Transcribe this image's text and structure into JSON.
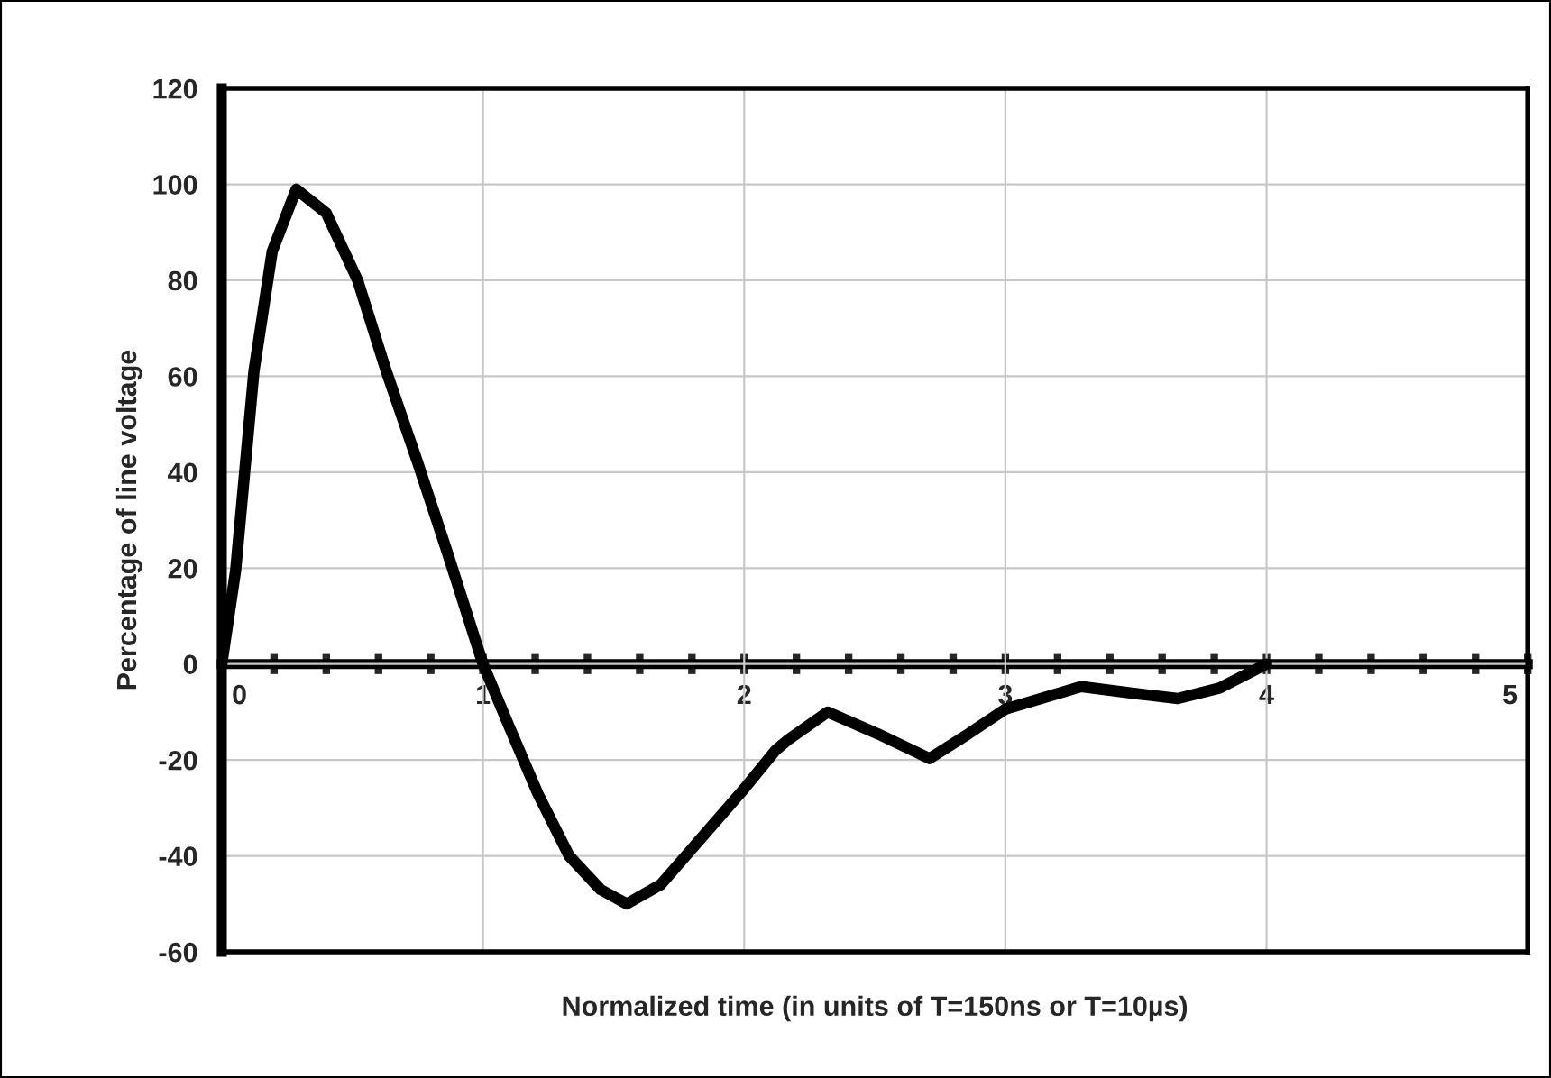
{
  "chart_data": {
    "type": "line",
    "xlabel": "Normalized time (in units of T=150ns or T=10µs)",
    "ylabel": "Percentage of line voltage",
    "x": [
      0,
      0.053,
      0.123,
      0.193,
      0.285,
      0.4,
      0.52,
      0.63,
      0.75,
      0.865,
      1.0,
      1.1,
      1.21,
      1.33,
      1.45,
      1.55,
      1.68,
      1.84,
      2.0,
      2.12,
      2.17,
      2.32,
      2.51,
      2.71,
      2.86,
      3.0,
      3.29,
      3.52,
      3.66,
      3.82,
      4.0
    ],
    "series": [
      {
        "color": "#000000",
        "values": [
          0,
          19.5,
          61,
          86,
          99,
          94,
          80,
          61,
          42,
          23,
          0,
          -13,
          -27,
          -40,
          -47,
          -50,
          -46,
          -36,
          -26,
          -18,
          -15.7,
          -10,
          -14.5,
          -19.7,
          -14.5,
          -9.4,
          -4.7,
          -6.3,
          -7.2,
          -5,
          0
        ]
      }
    ],
    "xlim": [
      0,
      5
    ],
    "ylim": [
      -60,
      120
    ],
    "xticks": [
      0,
      {
        "value": 0.2,
        "label": null
      },
      {
        "value": 0.4,
        "label": null
      },
      {
        "value": 0.6,
        "label": null
      },
      {
        "value": 0.8,
        "label": null
      },
      1,
      {
        "value": 1.2,
        "label": null
      },
      {
        "value": 1.4,
        "label": null
      },
      {
        "value": 1.6,
        "label": null
      },
      {
        "value": 1.8,
        "label": null
      },
      2,
      {
        "value": 2.2,
        "label": null
      },
      {
        "value": 2.4,
        "label": null
      },
      {
        "value": 2.6,
        "label": null
      },
      {
        "value": 2.8,
        "label": null
      },
      3,
      {
        "value": 3.2,
        "label": null
      },
      {
        "value": 3.4,
        "label": null
      },
      {
        "value": 3.6,
        "label": null
      },
      {
        "value": 3.8,
        "label": null
      },
      4,
      {
        "value": 4.2,
        "label": null
      },
      {
        "value": 4.4,
        "label": null
      },
      {
        "value": 4.6,
        "label": null
      },
      {
        "value": 4.8,
        "label": null
      },
      5
    ],
    "yticks": [
      -60,
      -40,
      -20,
      0,
      20,
      40,
      60,
      80,
      100,
      120
    ],
    "grid": true,
    "marker": "none",
    "line_style": "solid"
  }
}
